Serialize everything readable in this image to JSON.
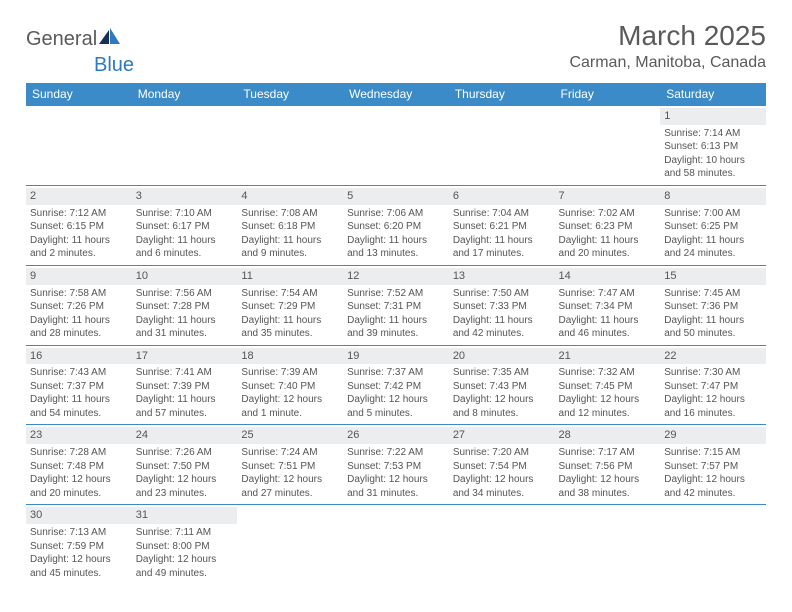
{
  "logo": {
    "part1": "General",
    "part2": "Blue"
  },
  "title": "March 2025",
  "location": "Carman, Manitoba, Canada",
  "colors": {
    "header_bg": "#3b8bc8",
    "header_text": "#ffffff",
    "row_border": "#3b8bc8",
    "daynum_bg": "#ecedee",
    "body_text": "#555555",
    "logo_blue": "#2e7ac2",
    "logo_gray": "#5a5a5a",
    "page_bg": "#ffffff"
  },
  "weekdays": [
    "Sunday",
    "Monday",
    "Tuesday",
    "Wednesday",
    "Thursday",
    "Friday",
    "Saturday"
  ],
  "weeks": [
    [
      null,
      null,
      null,
      null,
      null,
      null,
      {
        "n": "1",
        "sunrise": "Sunrise: 7:14 AM",
        "sunset": "Sunset: 6:13 PM",
        "day1": "Daylight: 10 hours",
        "day2": "and 58 minutes."
      }
    ],
    [
      {
        "n": "2",
        "sunrise": "Sunrise: 7:12 AM",
        "sunset": "Sunset: 6:15 PM",
        "day1": "Daylight: 11 hours",
        "day2": "and 2 minutes."
      },
      {
        "n": "3",
        "sunrise": "Sunrise: 7:10 AM",
        "sunset": "Sunset: 6:17 PM",
        "day1": "Daylight: 11 hours",
        "day2": "and 6 minutes."
      },
      {
        "n": "4",
        "sunrise": "Sunrise: 7:08 AM",
        "sunset": "Sunset: 6:18 PM",
        "day1": "Daylight: 11 hours",
        "day2": "and 9 minutes."
      },
      {
        "n": "5",
        "sunrise": "Sunrise: 7:06 AM",
        "sunset": "Sunset: 6:20 PM",
        "day1": "Daylight: 11 hours",
        "day2": "and 13 minutes."
      },
      {
        "n": "6",
        "sunrise": "Sunrise: 7:04 AM",
        "sunset": "Sunset: 6:21 PM",
        "day1": "Daylight: 11 hours",
        "day2": "and 17 minutes."
      },
      {
        "n": "7",
        "sunrise": "Sunrise: 7:02 AM",
        "sunset": "Sunset: 6:23 PM",
        "day1": "Daylight: 11 hours",
        "day2": "and 20 minutes."
      },
      {
        "n": "8",
        "sunrise": "Sunrise: 7:00 AM",
        "sunset": "Sunset: 6:25 PM",
        "day1": "Daylight: 11 hours",
        "day2": "and 24 minutes."
      }
    ],
    [
      {
        "n": "9",
        "sunrise": "Sunrise: 7:58 AM",
        "sunset": "Sunset: 7:26 PM",
        "day1": "Daylight: 11 hours",
        "day2": "and 28 minutes."
      },
      {
        "n": "10",
        "sunrise": "Sunrise: 7:56 AM",
        "sunset": "Sunset: 7:28 PM",
        "day1": "Daylight: 11 hours",
        "day2": "and 31 minutes."
      },
      {
        "n": "11",
        "sunrise": "Sunrise: 7:54 AM",
        "sunset": "Sunset: 7:29 PM",
        "day1": "Daylight: 11 hours",
        "day2": "and 35 minutes."
      },
      {
        "n": "12",
        "sunrise": "Sunrise: 7:52 AM",
        "sunset": "Sunset: 7:31 PM",
        "day1": "Daylight: 11 hours",
        "day2": "and 39 minutes."
      },
      {
        "n": "13",
        "sunrise": "Sunrise: 7:50 AM",
        "sunset": "Sunset: 7:33 PM",
        "day1": "Daylight: 11 hours",
        "day2": "and 42 minutes."
      },
      {
        "n": "14",
        "sunrise": "Sunrise: 7:47 AM",
        "sunset": "Sunset: 7:34 PM",
        "day1": "Daylight: 11 hours",
        "day2": "and 46 minutes."
      },
      {
        "n": "15",
        "sunrise": "Sunrise: 7:45 AM",
        "sunset": "Sunset: 7:36 PM",
        "day1": "Daylight: 11 hours",
        "day2": "and 50 minutes."
      }
    ],
    [
      {
        "n": "16",
        "sunrise": "Sunrise: 7:43 AM",
        "sunset": "Sunset: 7:37 PM",
        "day1": "Daylight: 11 hours",
        "day2": "and 54 minutes."
      },
      {
        "n": "17",
        "sunrise": "Sunrise: 7:41 AM",
        "sunset": "Sunset: 7:39 PM",
        "day1": "Daylight: 11 hours",
        "day2": "and 57 minutes."
      },
      {
        "n": "18",
        "sunrise": "Sunrise: 7:39 AM",
        "sunset": "Sunset: 7:40 PM",
        "day1": "Daylight: 12 hours",
        "day2": "and 1 minute."
      },
      {
        "n": "19",
        "sunrise": "Sunrise: 7:37 AM",
        "sunset": "Sunset: 7:42 PM",
        "day1": "Daylight: 12 hours",
        "day2": "and 5 minutes."
      },
      {
        "n": "20",
        "sunrise": "Sunrise: 7:35 AM",
        "sunset": "Sunset: 7:43 PM",
        "day1": "Daylight: 12 hours",
        "day2": "and 8 minutes."
      },
      {
        "n": "21",
        "sunrise": "Sunrise: 7:32 AM",
        "sunset": "Sunset: 7:45 PM",
        "day1": "Daylight: 12 hours",
        "day2": "and 12 minutes."
      },
      {
        "n": "22",
        "sunrise": "Sunrise: 7:30 AM",
        "sunset": "Sunset: 7:47 PM",
        "day1": "Daylight: 12 hours",
        "day2": "and 16 minutes."
      }
    ],
    [
      {
        "n": "23",
        "sunrise": "Sunrise: 7:28 AM",
        "sunset": "Sunset: 7:48 PM",
        "day1": "Daylight: 12 hours",
        "day2": "and 20 minutes."
      },
      {
        "n": "24",
        "sunrise": "Sunrise: 7:26 AM",
        "sunset": "Sunset: 7:50 PM",
        "day1": "Daylight: 12 hours",
        "day2": "and 23 minutes."
      },
      {
        "n": "25",
        "sunrise": "Sunrise: 7:24 AM",
        "sunset": "Sunset: 7:51 PM",
        "day1": "Daylight: 12 hours",
        "day2": "and 27 minutes."
      },
      {
        "n": "26",
        "sunrise": "Sunrise: 7:22 AM",
        "sunset": "Sunset: 7:53 PM",
        "day1": "Daylight: 12 hours",
        "day2": "and 31 minutes."
      },
      {
        "n": "27",
        "sunrise": "Sunrise: 7:20 AM",
        "sunset": "Sunset: 7:54 PM",
        "day1": "Daylight: 12 hours",
        "day2": "and 34 minutes."
      },
      {
        "n": "28",
        "sunrise": "Sunrise: 7:17 AM",
        "sunset": "Sunset: 7:56 PM",
        "day1": "Daylight: 12 hours",
        "day2": "and 38 minutes."
      },
      {
        "n": "29",
        "sunrise": "Sunrise: 7:15 AM",
        "sunset": "Sunset: 7:57 PM",
        "day1": "Daylight: 12 hours",
        "day2": "and 42 minutes."
      }
    ],
    [
      {
        "n": "30",
        "sunrise": "Sunrise: 7:13 AM",
        "sunset": "Sunset: 7:59 PM",
        "day1": "Daylight: 12 hours",
        "day2": "and 45 minutes."
      },
      {
        "n": "31",
        "sunrise": "Sunrise: 7:11 AM",
        "sunset": "Sunset: 8:00 PM",
        "day1": "Daylight: 12 hours",
        "day2": "and 49 minutes."
      },
      null,
      null,
      null,
      null,
      null
    ]
  ]
}
